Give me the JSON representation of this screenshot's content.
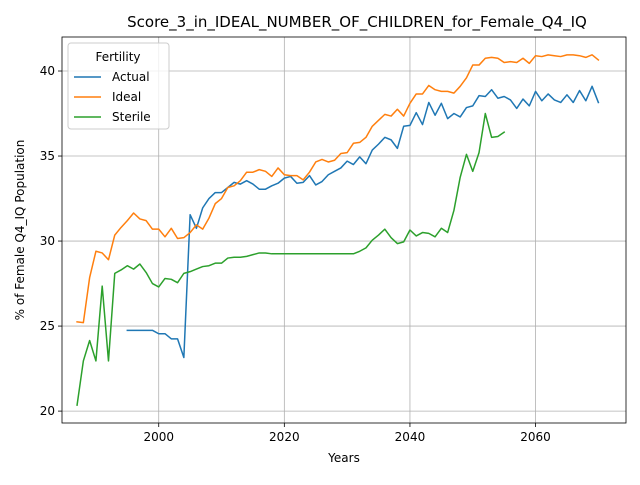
{
  "chart_data": {
    "type": "line",
    "title": "Score_3_in_IDEAL_NUMBER_OF_CHILDREN_for_Female_Q4_IQ",
    "xlabel": "Years",
    "ylabel": "% of Female Q4_IQ Population",
    "xlim": [
      1984.6,
      2074.4
    ],
    "ylim": [
      19.3,
      42.0
    ],
    "xticks": [
      2000,
      2020,
      2040,
      2060
    ],
    "xtick_labels": [
      "2000",
      "2020",
      "2040",
      "2060"
    ],
    "yticks": [
      20,
      25,
      30,
      35,
      40
    ],
    "ytick_labels": [
      "20",
      "25",
      "30",
      "35",
      "40"
    ],
    "grid": true,
    "legend": {
      "title": "Fertility",
      "placement": "top-left"
    },
    "series": [
      {
        "name": "Actual",
        "color": "#1f77b4",
        "x": [
          1995,
          1996,
          1997,
          1998,
          1999,
          2000,
          2001,
          2002,
          2003,
          2004,
          2005,
          2006,
          2007,
          2008,
          2009,
          2010,
          2011,
          2012,
          2013,
          2014,
          2015,
          2016,
          2017,
          2018,
          2019,
          2020,
          2021,
          2022,
          2023,
          2024,
          2025,
          2026,
          2027,
          2028,
          2029,
          2030,
          2031,
          2032,
          2033,
          2034,
          2035,
          2036,
          2037,
          2038,
          2039,
          2040,
          2041,
          2042,
          2043,
          2044,
          2045,
          2046,
          2047,
          2048,
          2049,
          2050,
          2051,
          2052,
          2053,
          2054,
          2055,
          2056,
          2057,
          2058,
          2059,
          2060,
          2061,
          2062,
          2063,
          2064,
          2065,
          2066,
          2067,
          2068,
          2069,
          2070
        ],
        "y": [
          24.75,
          24.75,
          24.75,
          24.75,
          24.75,
          24.55,
          24.55,
          24.25,
          24.25,
          23.15,
          31.55,
          30.75,
          31.95,
          32.5,
          32.85,
          32.85,
          33.15,
          33.45,
          33.35,
          33.55,
          33.35,
          33.05,
          33.05,
          33.25,
          33.4,
          33.7,
          33.8,
          33.4,
          33.45,
          33.85,
          33.3,
          33.5,
          33.9,
          34.1,
          34.3,
          34.7,
          34.5,
          34.95,
          34.55,
          35.35,
          35.7,
          36.1,
          35.95,
          35.45,
          36.75,
          36.8,
          37.55,
          36.85,
          38.15,
          37.4,
          38.1,
          37.2,
          37.5,
          37.3,
          37.85,
          37.95,
          38.55,
          38.5,
          38.9,
          38.4,
          38.5,
          38.3,
          37.8,
          38.35,
          37.95,
          38.8,
          38.25,
          38.65,
          38.3,
          38.15,
          38.6,
          38.15,
          38.85,
          38.25,
          39.1,
          38.15
        ]
      },
      {
        "name": "Ideal",
        "color": "#ff7f0e",
        "x": [
          1987,
          1988,
          1989,
          1990,
          1991,
          1992,
          1993,
          1994,
          1995,
          1996,
          1997,
          1998,
          1999,
          2000,
          2001,
          2002,
          2003,
          2004,
          2005,
          2006,
          2007,
          2008,
          2009,
          2010,
          2011,
          2012,
          2013,
          2014,
          2015,
          2016,
          2017,
          2018,
          2019,
          2020,
          2021,
          2022,
          2023,
          2024,
          2025,
          2026,
          2027,
          2028,
          2029,
          2030,
          2031,
          2032,
          2033,
          2034,
          2035,
          2036,
          2037,
          2038,
          2039,
          2040,
          2041,
          2042,
          2043,
          2044,
          2045,
          2046,
          2047,
          2048,
          2049,
          2050,
          2051,
          2052,
          2053,
          2054,
          2055,
          2056,
          2057,
          2058,
          2059,
          2060,
          2061,
          2062,
          2063,
          2064,
          2065,
          2066,
          2067,
          2068,
          2069,
          2070
        ],
        "y": [
          25.25,
          25.2,
          27.85,
          29.4,
          29.3,
          28.9,
          30.35,
          30.8,
          31.2,
          31.65,
          31.3,
          31.2,
          30.7,
          30.7,
          30.25,
          30.75,
          30.15,
          30.2,
          30.5,
          30.95,
          30.7,
          31.35,
          32.2,
          32.5,
          33.15,
          33.25,
          33.55,
          34.05,
          34.05,
          34.2,
          34.1,
          33.8,
          34.3,
          33.9,
          33.85,
          33.85,
          33.6,
          34.05,
          34.65,
          34.8,
          34.65,
          34.75,
          35.15,
          35.2,
          35.75,
          35.8,
          36.1,
          36.75,
          37.1,
          37.45,
          37.35,
          37.75,
          37.35,
          38.1,
          38.65,
          38.65,
          39.15,
          38.9,
          38.8,
          38.8,
          38.7,
          39.1,
          39.6,
          40.35,
          40.35,
          40.75,
          40.8,
          40.75,
          40.5,
          40.55,
          40.5,
          40.75,
          40.45,
          40.9,
          40.85,
          40.95,
          40.9,
          40.85,
          40.95,
          40.95,
          40.9,
          40.8,
          40.95,
          40.65
        ]
      },
      {
        "name": "Sterile",
        "color": "#2ca02c",
        "x": [
          1987,
          1988,
          1989,
          1990,
          1991,
          1992,
          1993,
          1994,
          1995,
          1996,
          1997,
          1998,
          1999,
          2000,
          2001,
          2002,
          2003,
          2004,
          2005,
          2006,
          2007,
          2008,
          2009,
          2010,
          2011,
          2012,
          2013,
          2014,
          2015,
          2016,
          2017,
          2018,
          2019,
          2020,
          2021,
          2022,
          2023,
          2024,
          2025,
          2026,
          2027,
          2028,
          2029,
          2030,
          2031,
          2032,
          2033,
          2034,
          2035,
          2036,
          2037,
          2038,
          2039,
          2040,
          2041,
          2042,
          2043,
          2044,
          2045,
          2046,
          2047,
          2048,
          2049,
          2050,
          2051,
          2052,
          2053,
          2054,
          2055
        ],
        "y": [
          20.35,
          22.95,
          24.15,
          22.95,
          27.35,
          22.95,
          28.1,
          28.3,
          28.55,
          28.35,
          28.65,
          28.15,
          27.5,
          27.3,
          27.8,
          27.75,
          27.55,
          28.1,
          28.2,
          28.35,
          28.5,
          28.55,
          28.7,
          28.7,
          29.0,
          29.05,
          29.05,
          29.1,
          29.2,
          29.3,
          29.3,
          29.25,
          29.25,
          29.25,
          29.25,
          29.25,
          29.25,
          29.25,
          29.25,
          29.25,
          29.25,
          29.25,
          29.25,
          29.25,
          29.25,
          29.4,
          29.6,
          30.05,
          30.35,
          30.7,
          30.2,
          29.85,
          29.95,
          30.65,
          30.3,
          30.5,
          30.45,
          30.25,
          30.75,
          30.5,
          31.8,
          33.75,
          35.1,
          34.1,
          35.2,
          37.5,
          36.1,
          36.15,
          36.4
        ]
      }
    ]
  }
}
